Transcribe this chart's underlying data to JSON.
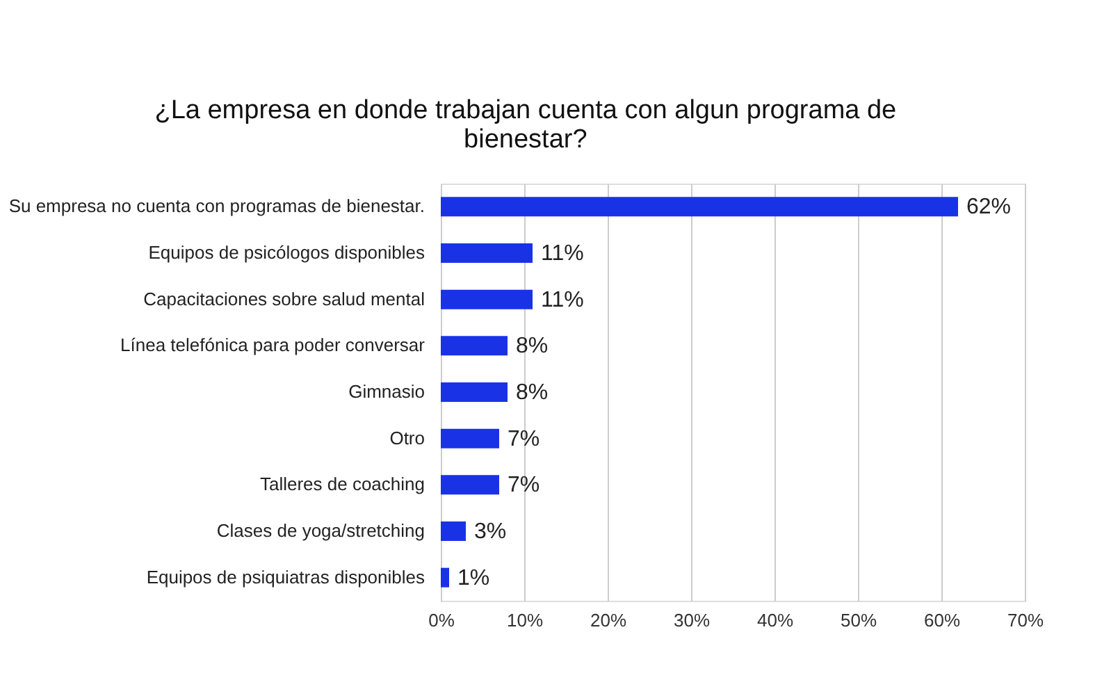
{
  "chart_data": {
    "type": "bar",
    "orientation": "horizontal",
    "title": "¿La empresa en donde trabajan cuenta con algun programa de bienestar?",
    "categories": [
      "Su empresa no cuenta con programas de bienestar.",
      "Equipos de psicólogos disponibles",
      "Capacitaciones sobre salud mental",
      "Línea telefónica para poder conversar",
      "Gimnasio",
      "Otro",
      "Talleres de coaching",
      "Clases de yoga/stretching",
      "Equipos de psiquiatras disponibles"
    ],
    "values": [
      62,
      11,
      11,
      8,
      8,
      7,
      7,
      3,
      1
    ],
    "value_labels": [
      "62%",
      "11%",
      "11%",
      "8%",
      "8%",
      "7%",
      "7%",
      "3%",
      "1%"
    ],
    "color": "#1a32e6",
    "xlim": [
      0,
      70
    ],
    "xticks": [
      {
        "value": 0,
        "label": "0%"
      },
      {
        "value": 10,
        "label": "10%"
      },
      {
        "value": 20,
        "label": "20%"
      },
      {
        "value": 30,
        "label": "30%"
      },
      {
        "value": 40,
        "label": "40%"
      },
      {
        "value": 50,
        "label": "50%"
      },
      {
        "value": 60,
        "label": "60%"
      },
      {
        "value": 70,
        "label": "70%"
      }
    ],
    "grid": "x"
  }
}
